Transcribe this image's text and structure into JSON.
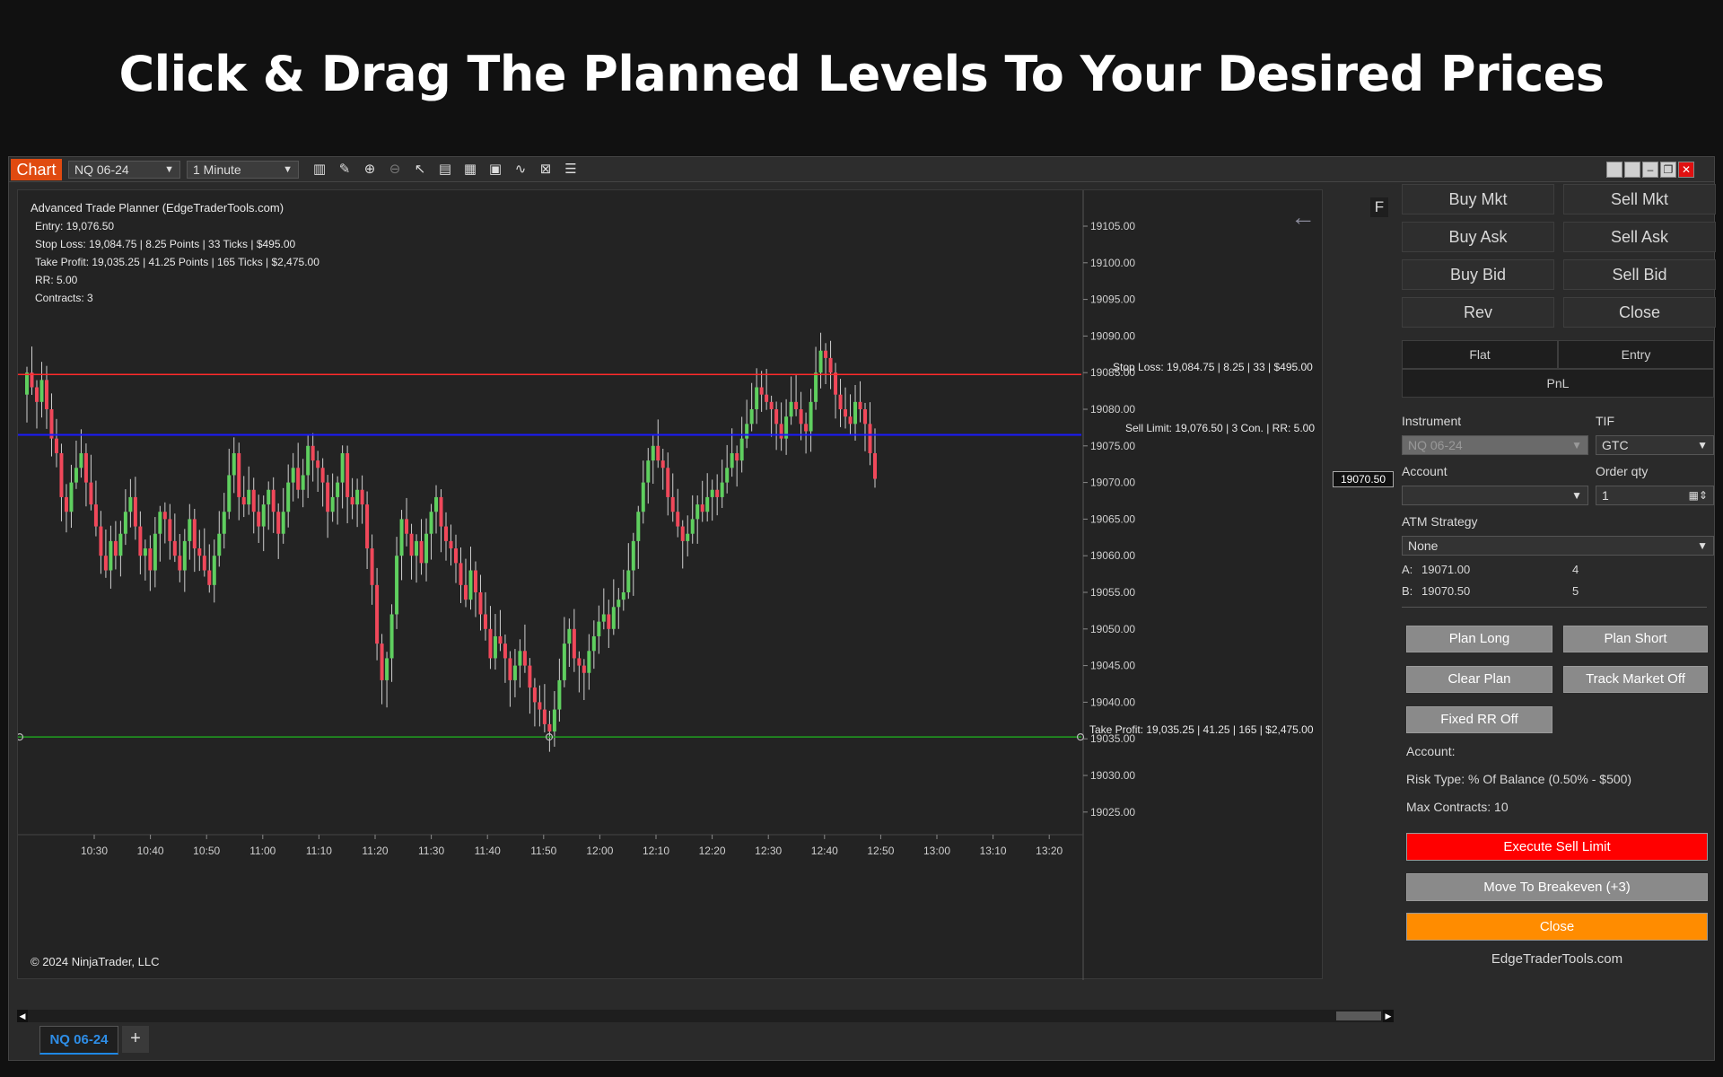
{
  "banner": {
    "title": "Click & Drag The Planned Levels To Your Desired Prices"
  },
  "toolbar": {
    "chart_tab": "Chart",
    "instrument": "NQ 06-24",
    "interval": "1 Minute",
    "icons": [
      "bar-chart-icon",
      "pencil-icon",
      "zoom-in-icon",
      "zoom-out-icon",
      "cursor-icon",
      "properties-icon",
      "templates-icon",
      "data-series-icon",
      "indicators-icon",
      "strategies-icon",
      "list-icon"
    ]
  },
  "chart": {
    "info_title": "Advanced Trade Planner (EdgeTraderTools.com)",
    "info_lines": [
      "Entry: 19,076.50",
      "Stop Loss: 19,084.75 | 8.25 Points | 33 Ticks | $495.00",
      "Take Profit: 19,035.25 | 41.25 Points | 165 Ticks | $2,475.00",
      "RR: 5.00",
      "Contracts: 3"
    ],
    "copyright": "© 2024 NinjaTrader, LLC",
    "f_label": "F",
    "stop_label": "Stop Loss: 19,084.75 | 8.25 | 33 | $495.00",
    "entry_label": "Sell Limit: 19,076.50 | 3 Con. | RR: 5.00",
    "tp_label": "Take Profit: 19,035.25 | 41.25 | 165 | $2,475.00",
    "last_price": "19070.50",
    "colors": {
      "stop": "#ff2a2a",
      "entry": "#1a1aff",
      "tp": "#1fa01f",
      "up": "#5fcf5f",
      "down": "#f0485a"
    }
  },
  "chart_data": {
    "type": "candlestick",
    "yticks": [
      "19105.00",
      "19100.00",
      "19095.00",
      "19090.00",
      "19085.00",
      "19080.00",
      "19075.00",
      "19070.00",
      "19065.00",
      "19060.00",
      "19055.00",
      "19050.00",
      "19045.00",
      "19040.00",
      "19035.00",
      "19030.00",
      "19025.00"
    ],
    "xticks": [
      "10:30",
      "10:40",
      "10:50",
      "11:00",
      "11:10",
      "11:20",
      "11:30",
      "11:40",
      "11:50",
      "12:00",
      "12:10",
      "12:20",
      "12:30",
      "12:40",
      "12:50",
      "13:00",
      "13:10",
      "13:20"
    ],
    "ylim": [
      19021.5,
      19107.0
    ],
    "levels": {
      "stop": 19084.75,
      "entry": 19076.5,
      "tp": 19035.25
    },
    "closes": [
      19085,
      19083,
      19081,
      19084,
      19080,
      19076,
      19074,
      19068,
      19066,
      19070,
      19072,
      19074,
      19070,
      19067,
      19064,
      19060,
      19058,
      19062,
      19060,
      19063,
      19066,
      19068,
      19064,
      19060,
      19061,
      19058,
      19063,
      19066,
      19065,
      19062,
      19060,
      19058,
      19062,
      19065,
      19061,
      19060,
      19058,
      19056,
      19060,
      19063,
      19066,
      19071,
      19074,
      19068,
      19067,
      19069,
      19066,
      19064,
      19067,
      19069,
      19066,
      19063,
      19066,
      19070,
      19072,
      19069,
      19071,
      19075,
      19073,
      19072,
      19070,
      19066,
      19068,
      19070,
      19074,
      19068,
      19067,
      19069,
      19067,
      19061,
      19056,
      19048,
      19043,
      19046,
      19052,
      19060,
      19065,
      19063,
      19060,
      19062,
      19059,
      19063,
      19066,
      19068,
      19064,
      19062,
      19061,
      19059,
      19056,
      19054,
      19058,
      19055,
      19052,
      19050,
      19046,
      19049,
      19048,
      19046,
      19043,
      19045,
      19047,
      19045,
      19042,
      19040,
      19039,
      19037,
      19036,
      19039,
      19043,
      19048,
      19050,
      19046,
      19045,
      19044,
      19047,
      19049,
      19051,
      19052,
      19050,
      19053,
      19054,
      19055,
      19058,
      19062,
      19066,
      19070,
      19073,
      19075,
      19073,
      19072,
      19068,
      19066,
      19064,
      19062,
      19063,
      19065,
      19067,
      19066,
      19068,
      19069,
      19068,
      19070,
      19072,
      19074,
      19073,
      19076,
      19078,
      19080,
      19083,
      19082,
      19081,
      19080,
      19078,
      19076,
      19079,
      19081,
      19080,
      19078,
      19077,
      19081,
      19085,
      19088,
      19087,
      19085,
      19082,
      19080,
      19079,
      19078,
      19081,
      19080,
      19078,
      19074,
      19070.5
    ]
  },
  "panel": {
    "buttons": [
      [
        "Buy Mkt",
        "Sell Mkt"
      ],
      [
        "Buy Ask",
        "Sell Ask"
      ],
      [
        "Buy Bid",
        "Sell Bid"
      ],
      [
        "Rev",
        "Close"
      ]
    ],
    "flat": "Flat",
    "entry": "Entry",
    "pnl": "PnL",
    "instrument_label": "Instrument",
    "instrument_value": "NQ 06-24",
    "tif_label": "TIF",
    "tif_value": "GTC",
    "account_label": "Account",
    "account_value": "",
    "orderqty_label": "Order qty",
    "orderqty_value": "1",
    "atm_label": "ATM Strategy",
    "atm_value": "None",
    "ask_label": "A:",
    "ask_price": "19071.00",
    "ask_size": "4",
    "bid_label": "B:",
    "bid_price": "19070.50",
    "bid_size": "5",
    "plan_long": "Plan Long",
    "plan_short": "Plan Short",
    "clear_plan": "Clear Plan",
    "track_market": "Track Market Off",
    "fixed_rr": "Fixed RR Off",
    "account_info": "Account:",
    "risk_type": "Risk Type: % Of Balance (0.50% - $500)",
    "max_contracts": "Max Contracts: 10",
    "execute": "Execute Sell Limit",
    "breakeven": "Move To Breakeven (+3)",
    "close": "Close",
    "footer": "EdgeTraderTools.com",
    "execute_color": "#ff0000",
    "close_color": "#ff8c00"
  },
  "tabbar": {
    "tab": "NQ 06-24",
    "add": "+"
  }
}
